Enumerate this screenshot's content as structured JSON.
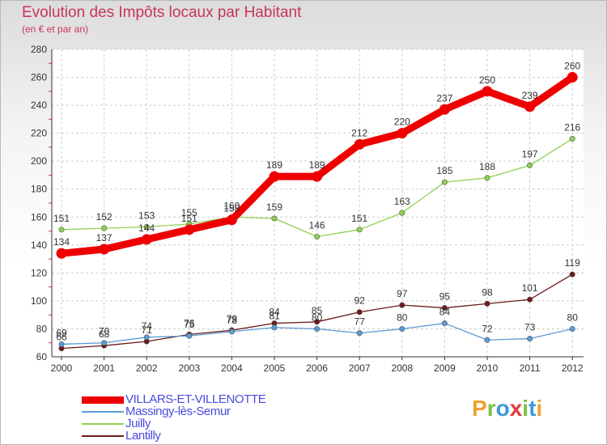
{
  "chart_data": {
    "type": "line",
    "title": "Evolution des Impôts locaux par Habitant",
    "subtitle": "(en € et par an)",
    "x": [
      "2000",
      "2001",
      "2002",
      "2003",
      "2004",
      "2005",
      "2006",
      "2007",
      "2008",
      "2009",
      "2010",
      "2011",
      "2012"
    ],
    "ylim": [
      60,
      280
    ],
    "yticks": [
      60,
      80,
      100,
      120,
      140,
      160,
      180,
      200,
      220,
      240,
      260,
      280
    ],
    "grid": true,
    "legend_position": "bottom-left",
    "series": [
      {
        "name": "VILLARS-ET-VILLENOTTE",
        "color": "#ee0000",
        "values": [
          134,
          137,
          144,
          151,
          158,
          189,
          189,
          212,
          220,
          237,
          250,
          239,
          260
        ]
      },
      {
        "name": "Massingy-lès-Semur",
        "color": "#5b9bd5",
        "values": [
          69,
          70,
          74,
          75,
          78,
          81,
          80,
          77,
          80,
          84,
          72,
          73,
          80
        ]
      },
      {
        "name": "Juilly",
        "color": "#8fd14f",
        "values": [
          151,
          152,
          153,
          155,
          160,
          159,
          146,
          151,
          163,
          185,
          188,
          197,
          216
        ]
      },
      {
        "name": "Lantilly",
        "color": "#6b1a1a",
        "values": [
          66,
          68,
          71,
          76,
          79,
          84,
          85,
          92,
          97,
          95,
          98,
          101,
          119
        ]
      }
    ]
  },
  "logo": {
    "letters": [
      {
        "char": "P",
        "color": "#f0a030"
      },
      {
        "char": "r",
        "color": "#7fbf3f"
      },
      {
        "char": "o",
        "color": "#3a9ad9"
      },
      {
        "char": "x",
        "color": "#e23a3a"
      },
      {
        "char": "i",
        "color": "#7fbf3f"
      },
      {
        "char": "t",
        "color": "#3a9ad9"
      },
      {
        "char": "i",
        "color": "#f0a030"
      }
    ]
  }
}
